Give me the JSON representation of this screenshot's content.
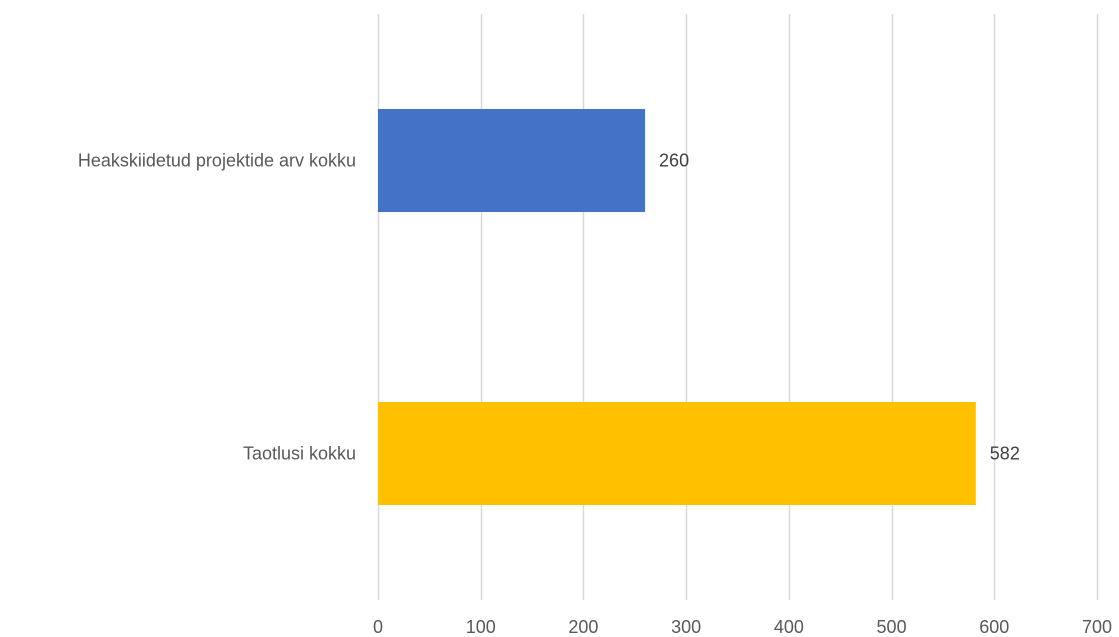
{
  "chart_data": {
    "type": "bar",
    "orientation": "horizontal",
    "categories": [
      "Heakskiidetud projektide arv kokku",
      "Taotlusi kokku"
    ],
    "values": [
      260,
      582
    ],
    "data_labels": [
      "260",
      "582"
    ],
    "bar_colors": [
      "#4472C4",
      "#FFC000"
    ],
    "xlim": [
      0,
      700
    ],
    "x_ticks": [
      0,
      100,
      200,
      300,
      400,
      500,
      600,
      700
    ],
    "x_tick_labels": [
      "0",
      "100",
      "200",
      "300",
      "400",
      "500",
      "600",
      "700"
    ],
    "title": "",
    "xlabel": "",
    "ylabel": "",
    "grid": true,
    "legend": "none"
  },
  "colors": {
    "gridline": "#D9D9D9",
    "axis_text": "#595959",
    "data_label_text": "#404040"
  }
}
